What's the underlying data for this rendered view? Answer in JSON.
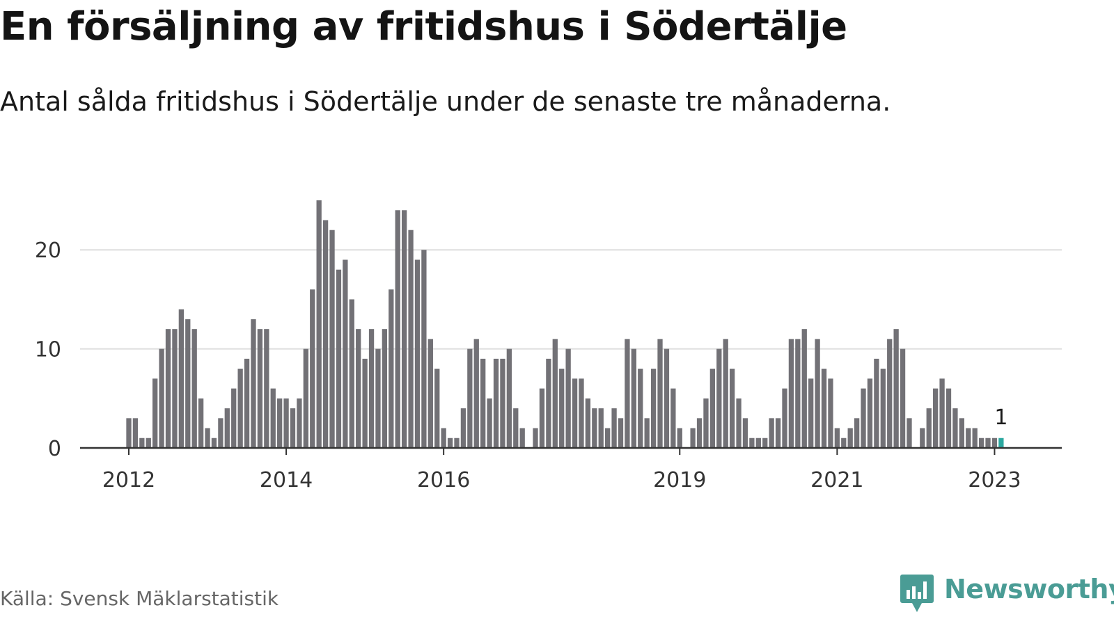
{
  "title": "En försäljning av fritidshus i Södertälje",
  "subtitle": "Antal sålda fritidshus i Södertälje under de senaste tre månaderna.",
  "source": "Källa: Svensk Mäklarstatistik",
  "logo": {
    "name": "Newsworthy",
    "icon": "newsworthy-chart-bubble-icon",
    "color": "#4a9c95"
  },
  "colors": {
    "bar": "#727176",
    "highlight": "#2ba8a0",
    "grid": "#dddddd",
    "axis": "#333333"
  },
  "chart_data": {
    "type": "bar",
    "title": "En försäljning av fritidshus i Södertälje",
    "ylim": [
      0,
      25
    ],
    "yticks": [
      0,
      10,
      20
    ],
    "xticks": [
      {
        "label": "2012",
        "index": 0
      },
      {
        "label": "2014",
        "index": 24
      },
      {
        "label": "2016",
        "index": 48
      },
      {
        "label": "2019",
        "index": 84
      },
      {
        "label": "2021",
        "index": 108
      },
      {
        "label": "2023",
        "index": 132
      }
    ],
    "series": [
      {
        "name": "Antal sålda fritidshus",
        "start": "2012-01",
        "values": [
          3,
          3,
          1,
          1,
          7,
          10,
          12,
          12,
          14,
          13,
          12,
          5,
          2,
          1,
          3,
          4,
          6,
          8,
          9,
          13,
          12,
          12,
          6,
          5,
          5,
          4,
          5,
          10,
          16,
          25,
          23,
          22,
          18,
          19,
          15,
          12,
          9,
          12,
          10,
          12,
          16,
          24,
          24,
          22,
          19,
          20,
          11,
          8,
          2,
          1,
          1,
          4,
          10,
          11,
          9,
          5,
          9,
          9,
          10,
          4,
          2,
          0,
          2,
          6,
          9,
          11,
          8,
          10,
          7,
          7,
          5,
          4,
          4,
          2,
          4,
          3,
          11,
          10,
          8,
          3,
          8,
          11,
          10,
          6,
          2,
          0,
          2,
          3,
          5,
          8,
          10,
          11,
          8,
          5,
          3,
          1,
          1,
          1,
          3,
          3,
          6,
          11,
          11,
          12,
          7,
          11,
          8,
          7,
          2,
          1,
          2,
          3,
          6,
          7,
          9,
          8,
          11,
          12,
          10,
          3,
          0,
          2,
          4,
          6,
          7,
          6,
          4,
          3,
          2,
          2,
          1,
          1,
          1,
          1
        ]
      }
    ],
    "annotation": {
      "label": "1",
      "value": 1
    }
  }
}
